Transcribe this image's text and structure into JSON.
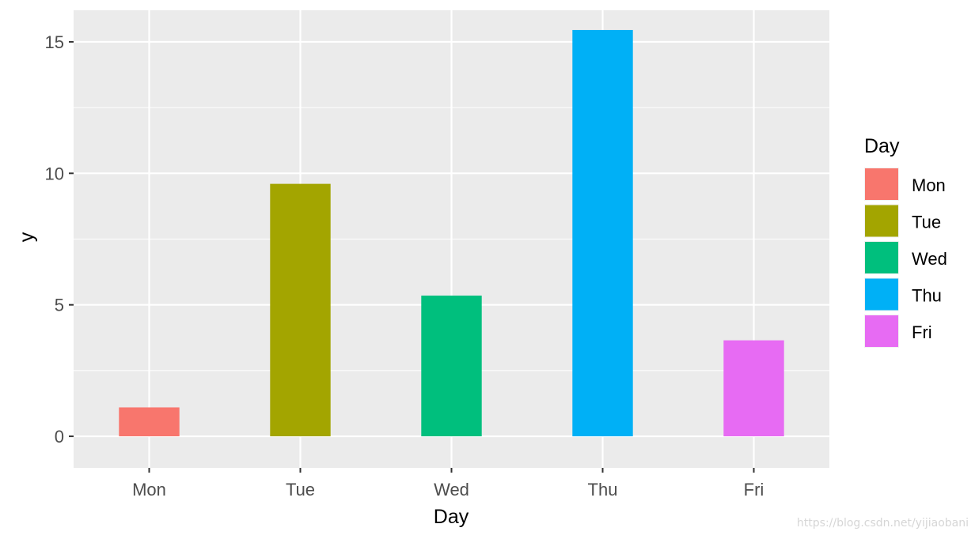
{
  "chart_data": {
    "type": "bar",
    "xlabel": "Day",
    "ylabel": "y",
    "categories": [
      "Mon",
      "Tue",
      "Wed",
      "Thu",
      "Fri"
    ],
    "values": [
      1.1,
      9.6,
      5.35,
      15.45,
      3.65
    ],
    "colors": [
      "#F8766D",
      "#A3A500",
      "#00BF7D",
      "#00B0F6",
      "#E76BF3"
    ],
    "ylim": [
      -1.2,
      16.2
    ],
    "yticks": [
      0,
      5,
      10,
      15
    ],
    "grid": true,
    "legend": {
      "title": "Day",
      "position": "right",
      "entries": [
        "Mon",
        "Tue",
        "Wed",
        "Thu",
        "Fri"
      ]
    }
  },
  "watermark": "https://blog.csdn.net/yijiaobani"
}
